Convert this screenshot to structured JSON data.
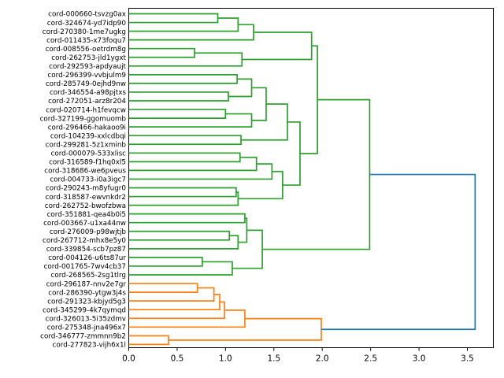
{
  "chart_data": {
    "type": "dendrogram",
    "title": "",
    "orientation": "root-right",
    "leaf_labels": [
      "cord-000660-tsvzg0ax",
      "cord-324674-yd7idp90",
      "cord-270380-1me7ugkg",
      "cord-011435-x73foqu7",
      "cord-008556-oetrdm8g",
      "cord-262753-jld1ygxt",
      "cord-292593-apdyaujt",
      "cord-296399-vvbjulm9",
      "cord-285749-0ejhd9nw",
      "cord-346554-a98pjtxs",
      "cord-272051-arz8r204",
      "cord-020714-h1fevqcw",
      "cord-327199-ggomuomb",
      "cord-296466-hakaoo9i",
      "cord-104239-xxlcdbqi",
      "cord-299281-5z1xminb",
      "cord-000079-533xlisc",
      "cord-316589-f1hq0xl5",
      "cord-318686-we6pveus",
      "cord-004733-i0a3igc7",
      "cord-290243-m8yfugr0",
      "cord-318587-ewvnkdr2",
      "cord-262752-bwofzbwa",
      "cord-351881-qea4b0i5",
      "cord-003667-u1xa44nw",
      "cord-276009-p98wjtjb",
      "cord-267712-mhx8e5y0",
      "cord-339854-scb7pz87",
      "cord-004126-u6ts87ur",
      "cord-001765-7wv4cb37",
      "cord-268565-2sg1tlrg",
      "cord-296187-nnv2e7gr",
      "cord-286390-ytgw3j4s",
      "cord-291323-kbjyd5g3",
      "cord-345299-4k7qymqd",
      "cord-326013-5i35zdmv",
      "cord-275348-jna496x7",
      "cord-346777-zmmnn9b2",
      "cord-277823-vijh6x1l"
    ],
    "x_tick_labels": [
      "0.0",
      "0.5",
      "1.0",
      "1.5",
      "2.0",
      "2.5",
      "3.0",
      "3.5"
    ],
    "x_tick_values": [
      0,
      0.5,
      1.0,
      1.5,
      2.0,
      2.5,
      3.0,
      3.5
    ],
    "xlim": [
      0,
      3.77
    ],
    "grid": false,
    "legend": null,
    "colors": {
      "cluster_green": "#2ca02c",
      "cluster_orange": "#ff7f0e",
      "root_blue": "#1f77b4",
      "spine": "#000000"
    },
    "tree": {
      "h": 3.58,
      "col": "root_blue",
      "c": [
        {
          "h": 2.49,
          "col": "cluster_green",
          "c": [
            {
              "h": 1.95,
              "c": [
                {
                  "h": 1.89,
                  "c": [
                    {
                      "h": 1.29,
                      "c": [
                        {
                          "h": 1.13,
                          "c": [
                            {
                              "h": 0.92,
                              "c": [
                                0,
                                1
                              ]
                            },
                            2
                          ]
                        },
                        3
                      ]
                    },
                    {
                      "h": 1.17,
                      "c": [
                        {
                          "h": 0.68,
                          "c": [
                            4,
                            5
                          ]
                        },
                        6
                      ]
                    }
                  ]
                },
                {
                  "h": 1.77,
                  "c": [
                    {
                      "h": 1.64,
                      "c": [
                        {
                          "h": 1.42,
                          "c": [
                            {
                              "h": 1.27,
                              "c": [
                                {
                                  "h": 1.12,
                                  "c": [
                                    7,
                                    8
                                  ]
                                },
                                {
                                  "h": 1.03,
                                  "c": [
                                    9,
                                    10
                                  ]
                                }
                              ]
                            },
                            {
                              "h": 1.27,
                              "c": [
                                {
                                  "h": 1.0,
                                  "c": [
                                    11,
                                    12
                                  ]
                                },
                                13
                              ]
                            }
                          ]
                        },
                        {
                          "h": 1.16,
                          "c": [
                            14,
                            15
                          ]
                        }
                      ]
                    },
                    {
                      "h": 1.59,
                      "c": [
                        {
                          "h": 1.48,
                          "c": [
                            {
                              "h": 1.32,
                              "c": [
                                {
                                  "h": 1.15,
                                  "c": [
                                    16,
                                    17
                                  ]
                                },
                                18
                              ]
                            },
                            19
                          ]
                        },
                        {
                          "h": 1.13,
                          "c": [
                            {
                              "h": 1.11,
                              "c": [
                                20,
                                21
                              ]
                            },
                            22
                          ]
                        }
                      ]
                    }
                  ]
                }
              ]
            },
            {
              "h": 1.38,
              "c": [
                {
                  "h": 1.22,
                  "c": [
                    {
                      "h": 1.2,
                      "c": [
                        23,
                        24
                      ]
                    },
                    {
                      "h": 1.13,
                      "c": [
                        {
                          "h": 1.04,
                          "c": [
                            25,
                            26
                          ]
                        },
                        27
                      ]
                    }
                  ]
                },
                {
                  "h": 1.07,
                  "c": [
                    {
                      "h": 0.76,
                      "c": [
                        28,
                        29
                      ]
                    },
                    30
                  ]
                }
              ]
            }
          ]
        },
        {
          "h": 1.99,
          "col": "cluster_orange",
          "c": [
            {
              "h": 1.2,
              "c": [
                {
                  "h": 0.99,
                  "c": [
                    {
                      "h": 0.94,
                      "c": [
                        {
                          "h": 0.88,
                          "c": [
                            {
                              "h": 0.71,
                              "c": [
                                31,
                                32
                              ]
                            },
                            33
                          ]
                        },
                        34
                      ]
                    },
                    35
                  ]
                },
                36
              ]
            },
            {
              "h": 0.41,
              "c": [
                37,
                38
              ]
            }
          ]
        }
      ]
    }
  }
}
